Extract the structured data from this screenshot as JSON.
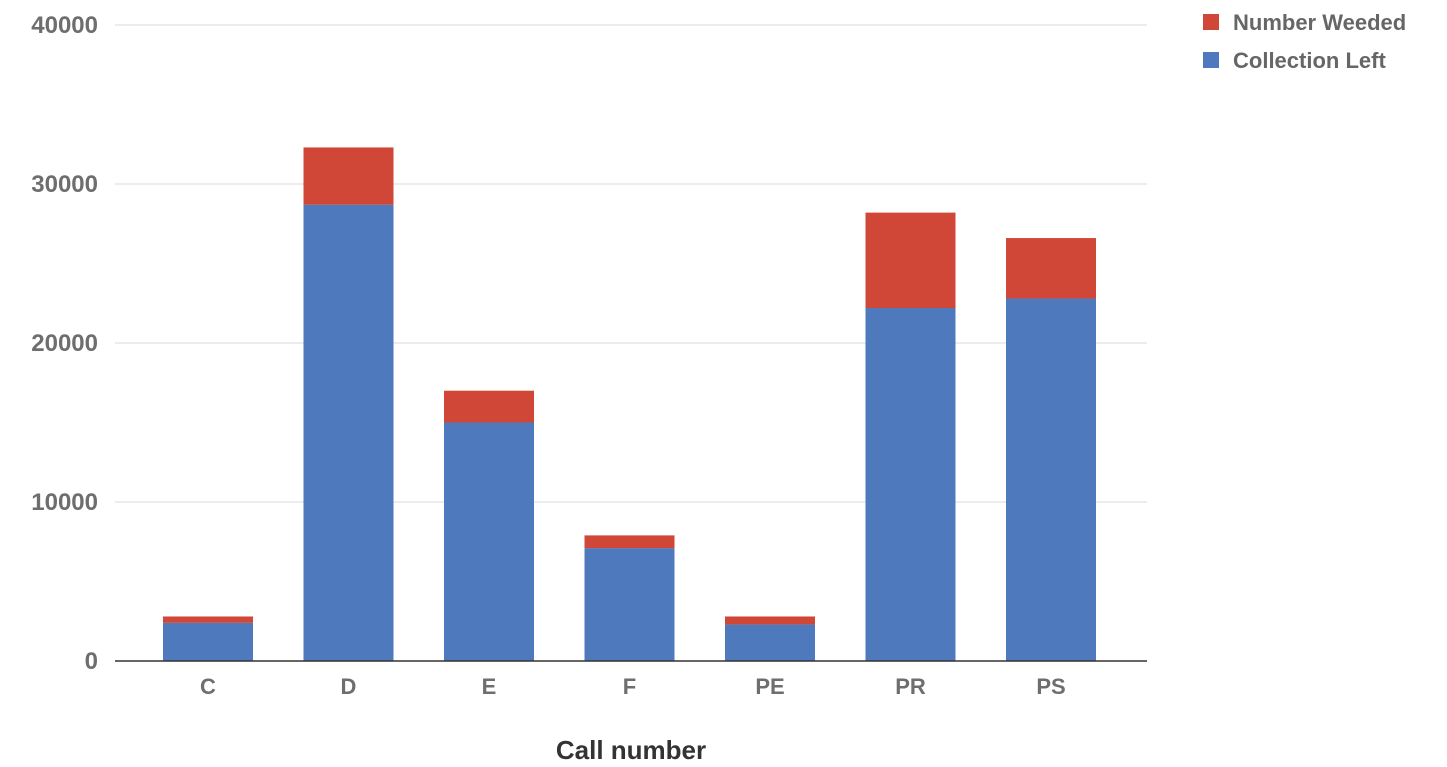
{
  "chart_data": {
    "type": "bar",
    "stacked": true,
    "categories": [
      "C",
      "D",
      "E",
      "F",
      "PE",
      "PR",
      "PS"
    ],
    "series": [
      {
        "name": "Collection Left",
        "color": "#4f79bd",
        "values": [
          2400,
          28700,
          15000,
          7100,
          2300,
          22200,
          22800
        ]
      },
      {
        "name": "Number Weeded",
        "color": "#d04737",
        "values": [
          400,
          3600,
          2000,
          800,
          500,
          6000,
          3800
        ]
      }
    ],
    "xlabel": "Call number",
    "ylabel": "",
    "ylim": [
      0,
      40000
    ],
    "yticks": [
      0,
      10000,
      20000,
      30000,
      40000
    ],
    "grid": true,
    "legend_position": "top-right",
    "legend_order": [
      "Number Weeded",
      "Collection Left"
    ]
  }
}
